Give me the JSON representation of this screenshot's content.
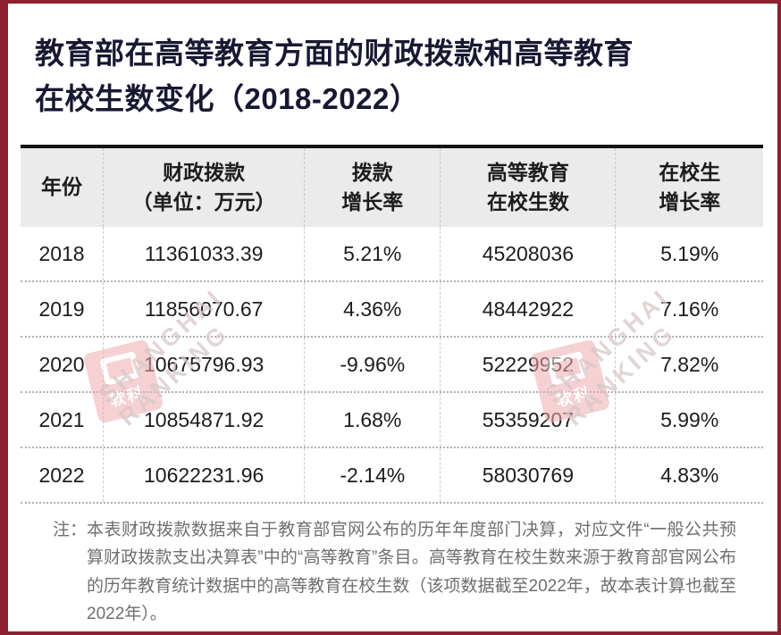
{
  "title": {
    "line1": "教育部在高等教育方面的财政拨款和高等教育",
    "line2": "在校生数变化（2018-2022）"
  },
  "table": {
    "columns": [
      {
        "label": "年份",
        "sublabel": ""
      },
      {
        "label": "财政拨款",
        "sublabel": "（单位：万元）"
      },
      {
        "label": "拨款",
        "sublabel": "增长率"
      },
      {
        "label": "高等教育",
        "sublabel": "在校生数"
      },
      {
        "label": "在校生",
        "sublabel": "增长率"
      }
    ],
    "rows": [
      {
        "year": "2018",
        "funding": "11361033.39",
        "funding_growth": "5.21%",
        "students": "45208036",
        "students_growth": "5.19%"
      },
      {
        "year": "2019",
        "funding": "11856070.67",
        "funding_growth": "4.36%",
        "students": "48442922",
        "students_growth": "7.16%"
      },
      {
        "year": "2020",
        "funding": "10675796.93",
        "funding_growth": "-9.96%",
        "students": "52229952",
        "students_growth": "7.82%"
      },
      {
        "year": "2021",
        "funding": "10854871.92",
        "funding_growth": "1.68%",
        "students": "55359207",
        "students_growth": "5.99%"
      },
      {
        "year": "2022",
        "funding": "10622231.96",
        "funding_growth": "-2.14%",
        "students": "58030769",
        "students_growth": "4.83%"
      }
    ]
  },
  "note": {
    "label": "注：",
    "text": "本表财政拨款数据来自于教育部官网公布的历年年度部门决算，对应文件“一般公共预算财政拨款支出决算表”中的“高等教育”条目。高等教育在校生数来源于教育部官网公布的历年教育统计数据中的高等教育在校生数（该项数据截至2022年，故本表计算也截至2022年）。"
  },
  "watermark": {
    "logo_text": "软科",
    "brand_line1": "SHANGHAI",
    "brand_line2": "RANKING"
  },
  "colors": {
    "frame_red": "#8e2130",
    "header_bg": "#ebebeb",
    "title_text": "#181832",
    "body_text": "#1c1c1c",
    "note_text": "#6f6f6f",
    "rule_black": "#141414",
    "watermark_pink": "#eeacb0"
  },
  "chart_data": {
    "type": "table",
    "title": "教育部在高等教育方面的财政拨款和高等教育在校生数变化（2018-2022）",
    "columns": [
      "年份",
      "财政拨款（单位：万元）",
      "拨款增长率",
      "高等教育在校生数",
      "在校生增长率"
    ],
    "rows": [
      [
        "2018",
        11361033.39,
        "5.21%",
        45208036,
        "5.19%"
      ],
      [
        "2019",
        11856070.67,
        "4.36%",
        48442922,
        "7.16%"
      ],
      [
        "2020",
        10675796.93,
        "-9.96%",
        52229952,
        "7.82%"
      ],
      [
        "2021",
        10854871.92,
        "1.68%",
        55359207,
        "5.99%"
      ],
      [
        "2022",
        10622231.96,
        "-2.14%",
        58030769,
        "4.83%"
      ]
    ],
    "note": "注：本表财政拨款数据来自于教育部官网公布的历年年度部门决算，对应文件“一般公共预算财政拨款支出决算表”中的“高等教育”条目。高等教育在校生数来源于教育部官网公布的历年教育统计数据中的高等教育在校生数（该项数据截至2022年，故本表计算也截至2022年）。"
  }
}
